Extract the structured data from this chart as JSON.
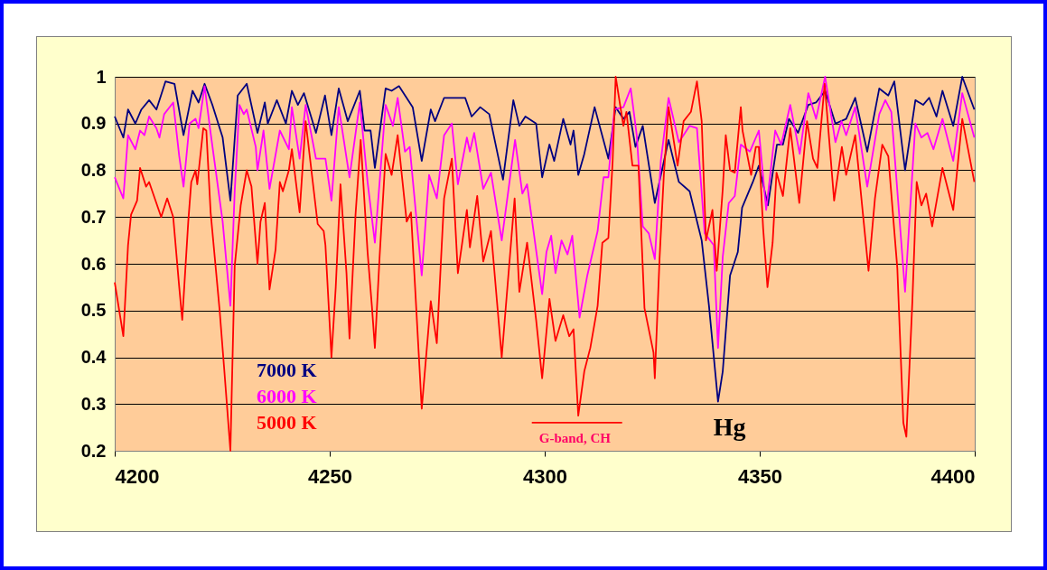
{
  "chart_data": {
    "type": "line",
    "xlim": [
      4200,
      4400
    ],
    "xticks": [
      4200,
      4250,
      4300,
      4350,
      4400
    ],
    "ylim": [
      0.2,
      1
    ],
    "yticks": [
      0.2,
      0.3,
      0.4,
      0.5,
      0.6,
      0.7,
      0.8,
      0.9,
      1
    ],
    "grid": "y",
    "series": [
      {
        "name": "7000 K",
        "color": "#000080",
        "x": [
          4200,
          4202,
          4203.1,
          4204.8,
          4206.2,
          4208,
          4209.7,
          4211.8,
          4213.9,
          4216,
          4218.1,
          4219.5,
          4220.9,
          4222.7,
          4225.1,
          4226.9,
          4228.6,
          4230.7,
          4233.2,
          4234.9,
          4235.6,
          4237.7,
          4239.8,
          4241.2,
          4242.6,
          4244,
          4246.8,
          4248.9,
          4250.4,
          4252.1,
          4254.2,
          4257,
          4258.1,
          4259.5,
          4260.5,
          4263,
          4264.4,
          4266.1,
          4269.3,
          4271.4,
          4273.5,
          4274.5,
          4276.6,
          4279.1,
          4281.5,
          4283,
          4285,
          4287.1,
          4290.3,
          4292.7,
          4294.1,
          4295.5,
          4298,
          4299.4,
          4301.1,
          4302.2,
          4304.3,
          4306,
          4306.7,
          4307.8,
          4309.2,
          4311.6,
          4314.8,
          4316.5,
          4318.3,
          4319.7,
          4321.1,
          4322.8,
          4325.6,
          4328.8,
          4331.2,
          4333.7,
          4336.5,
          4338.2,
          4340.3,
          4341.4,
          4343.1,
          4344.9,
          4345.9,
          4348.4,
          4349.8,
          4351.9,
          4354,
          4355.4,
          4356.8,
          4358.9,
          4361.3,
          4363.1,
          4365.2,
          4367.6,
          4370.1,
          4372.2,
          4375,
          4377.8,
          4379.9,
          4381.3,
          4383.8,
          4386.2,
          4388,
          4389.4,
          4391.1,
          4392.5,
          4395,
          4397.1,
          4399.9
        ],
        "values": [
          0.915,
          0.87,
          0.93,
          0.9,
          0.93,
          0.95,
          0.93,
          0.99,
          0.985,
          0.875,
          0.97,
          0.945,
          0.985,
          0.94,
          0.87,
          0.735,
          0.96,
          0.985,
          0.88,
          0.945,
          0.9,
          0.95,
          0.9,
          0.97,
          0.94,
          0.965,
          0.88,
          0.96,
          0.875,
          0.975,
          0.905,
          0.97,
          0.885,
          0.885,
          0.805,
          0.975,
          0.97,
          0.98,
          0.935,
          0.82,
          0.93,
          0.905,
          0.955,
          0.955,
          0.955,
          0.915,
          0.935,
          0.92,
          0.78,
          0.95,
          0.895,
          0.915,
          0.9,
          0.785,
          0.855,
          0.82,
          0.91,
          0.855,
          0.885,
          0.79,
          0.835,
          0.935,
          0.825,
          0.935,
          0.91,
          0.925,
          0.85,
          0.895,
          0.73,
          0.865,
          0.775,
          0.755,
          0.65,
          0.51,
          0.305,
          0.37,
          0.575,
          0.625,
          0.72,
          0.775,
          0.81,
          0.725,
          0.855,
          0.855,
          0.91,
          0.88,
          0.94,
          0.945,
          0.97,
          0.9,
          0.91,
          0.955,
          0.84,
          0.975,
          0.96,
          0.99,
          0.8,
          0.95,
          0.94,
          0.955,
          0.915,
          0.97,
          0.895,
          1.0,
          0.93
        ]
      },
      {
        "name": "6000 K",
        "color": "#ff00ff",
        "x": [
          4200,
          4202,
          4203.1,
          4204.8,
          4205.9,
          4206.9,
          4208,
          4209.7,
          4210.4,
          4211.5,
          4213.6,
          4215,
          4216,
          4217.4,
          4218.8,
          4219.5,
          4220.9,
          4222.3,
          4225.1,
          4226.9,
          4227.9,
          4229,
          4230,
          4230.7,
          4232.8,
          4233.2,
          4234.6,
          4236,
          4238.4,
          4240.5,
          4241.2,
          4243,
          4244.4,
          4246.8,
          4249,
          4250.4,
          4252.1,
          4254.6,
          4257,
          4258.8,
          4260.5,
          4263,
          4264.7,
          4265.8,
          4267.5,
          4268.6,
          4271.4,
          4273.1,
          4274.9,
          4276.6,
          4278.4,
          4279.8,
          4281.9,
          4282.6,
          4283.6,
          4285.7,
          4287.5,
          4290,
          4293.1,
          4294.8,
          4295.9,
          4299.4,
          4300.4,
          4301.5,
          4302.5,
          4303.9,
          4305.3,
          4306.4,
          4308.1,
          4309.9,
          4312.3,
          4313.7,
          4314.8,
          4316.2,
          4318.3,
          4320,
          4321.4,
          4322.8,
          4324.2,
          4325.6,
          4327,
          4328.8,
          4331.2,
          4333.7,
          4335.4,
          4337.2,
          4339.3,
          4340.3,
          4341.4,
          4342.8,
          4344.2,
          4345.6,
          4347.7,
          4349.8,
          4351.5,
          4353.6,
          4355,
          4357.1,
          4359.3,
          4361.3,
          4363.1,
          4365.2,
          4367.6,
          4369,
          4370.1,
          4372.2,
          4375,
          4377.8,
          4379.2,
          4380.6,
          4383.8,
          4386.2,
          4387.6,
          4389,
          4390.4,
          4392.5,
          4395,
          4397.1,
          4399.9
        ],
        "values": [
          0.785,
          0.74,
          0.875,
          0.845,
          0.885,
          0.875,
          0.915,
          0.89,
          0.87,
          0.92,
          0.945,
          0.83,
          0.765,
          0.9,
          0.91,
          0.89,
          0.98,
          0.88,
          0.69,
          0.51,
          0.755,
          0.94,
          0.92,
          0.93,
          0.85,
          0.8,
          0.885,
          0.76,
          0.885,
          0.845,
          0.935,
          0.825,
          0.94,
          0.825,
          0.825,
          0.735,
          0.935,
          0.785,
          0.945,
          0.775,
          0.645,
          0.94,
          0.895,
          0.955,
          0.84,
          0.85,
          0.575,
          0.79,
          0.74,
          0.875,
          0.9,
          0.77,
          0.87,
          0.84,
          0.88,
          0.76,
          0.795,
          0.65,
          0.865,
          0.75,
          0.77,
          0.535,
          0.625,
          0.66,
          0.58,
          0.65,
          0.62,
          0.66,
          0.485,
          0.575,
          0.67,
          0.785,
          0.785,
          0.93,
          0.935,
          0.975,
          0.875,
          0.68,
          0.665,
          0.61,
          0.82,
          0.955,
          0.86,
          0.895,
          0.89,
          0.665,
          0.64,
          0.42,
          0.615,
          0.73,
          0.745,
          0.855,
          0.84,
          0.885,
          0.715,
          0.885,
          0.855,
          0.94,
          0.835,
          0.965,
          0.91,
          1.0,
          0.86,
          0.905,
          0.875,
          0.935,
          0.765,
          0.92,
          0.95,
          0.925,
          0.54,
          0.9,
          0.87,
          0.88,
          0.845,
          0.91,
          0.82,
          0.965,
          0.87
        ]
      },
      {
        "type": "line",
        "color": "#ff0000",
        "x": [
          4297,
          4318
        ],
        "values": [
          0.26,
          0.26
        ]
      },
      {
        "name": "5000 K",
        "color": "#ff0000",
        "x": [
          4200,
          4202,
          4203.1,
          4203.8,
          4205.2,
          4205.9,
          4207.3,
          4208,
          4210.8,
          4212.2,
          4213.6,
          4215,
          4215.7,
          4217.1,
          4217.8,
          4218.8,
          4219.2,
          4220.6,
          4221.3,
          4222.3,
          4224.4,
          4225.5,
          4226.9,
          4227.9,
          4229.3,
          4230.7,
          4231.8,
          4233.2,
          4233.9,
          4234.9,
          4236,
          4237.4,
          4238.4,
          4239.1,
          4240.5,
          4241.2,
          4243,
          4244.4,
          4247.2,
          4248.6,
          4249,
          4250.4,
          4251.4,
          4252.5,
          4253.9,
          4254.6,
          4256,
          4257.2,
          4258.8,
          4259.8,
          4260.5,
          4261.6,
          4263,
          4264.4,
          4265.8,
          4267.9,
          4268.9,
          4271.4,
          4273.5,
          4274.9,
          4276.6,
          4278.4,
          4279.8,
          4281.9,
          4282.6,
          4284.3,
          4285.7,
          4287.5,
          4290,
          4293,
          4294.1,
          4295.9,
          4298,
          4299.4,
          4301.1,
          4302.5,
          4304.3,
          4305.7,
          4306.7,
          4307.8,
          4309.2,
          4310.6,
          4312.3,
          4313.4,
          4314.8,
          4315.8,
          4316.5,
          4318.3,
          4319,
          4320.4,
          4321.8,
          4323.2,
          4325.3,
          4325.6,
          4326.7,
          4327.7,
          4328.8,
          4330.9,
          4332.3,
          4334,
          4335.4,
          4336.5,
          4337.5,
          4339,
          4340,
          4341.4,
          4342.1,
          4343.1,
          4344.2,
          4345.6,
          4346,
          4348,
          4349.1,
          4349.8,
          4350.8,
          4351.8,
          4353,
          4353.9,
          4355.4,
          4357.1,
          4359.2,
          4361,
          4362.4,
          4363.4,
          4365.1,
          4367.3,
          4369.1,
          4370.1,
          4372.2,
          4375.3,
          4376.8,
          4378.5,
          4379.9,
          4382,
          4383.4,
          4384.1,
          4385.5,
          4386.5,
          4387.6,
          4388.7,
          4390.1,
          4392.5,
          4395,
          4397.1,
          4399.9
        ],
        "values": [
          0.56,
          0.445,
          0.64,
          0.705,
          0.735,
          0.805,
          0.765,
          0.775,
          0.7,
          0.74,
          0.7,
          0.55,
          0.48,
          0.69,
          0.775,
          0.8,
          0.77,
          0.89,
          0.885,
          0.71,
          0.5,
          0.37,
          0.2,
          0.595,
          0.725,
          0.8,
          0.765,
          0.6,
          0.69,
          0.73,
          0.545,
          0.63,
          0.775,
          0.755,
          0.8,
          0.845,
          0.71,
          0.905,
          0.685,
          0.67,
          0.64,
          0.4,
          0.55,
          0.77,
          0.58,
          0.44,
          0.705,
          0.865,
          0.625,
          0.51,
          0.42,
          0.615,
          0.835,
          0.79,
          0.875,
          0.69,
          0.71,
          0.29,
          0.52,
          0.43,
          0.74,
          0.825,
          0.58,
          0.715,
          0.635,
          0.745,
          0.605,
          0.67,
          0.4,
          0.74,
          0.54,
          0.645,
          0.48,
          0.355,
          0.525,
          0.435,
          0.49,
          0.445,
          0.46,
          0.275,
          0.37,
          0.42,
          0.51,
          0.645,
          0.655,
          0.82,
          1.0,
          0.895,
          0.925,
          0.81,
          0.81,
          0.505,
          0.41,
          0.355,
          0.61,
          0.79,
          0.935,
          0.81,
          0.905,
          0.925,
          0.99,
          0.905,
          0.65,
          0.715,
          0.585,
          0.76,
          0.875,
          0.8,
          0.795,
          0.935,
          0.885,
          0.79,
          0.85,
          0.85,
          0.675,
          0.55,
          0.645,
          0.795,
          0.745,
          0.89,
          0.73,
          0.905,
          0.825,
          0.805,
          0.985,
          0.735,
          0.85,
          0.79,
          0.875,
          0.585,
          0.74,
          0.855,
          0.83,
          0.59,
          0.26,
          0.23,
          0.52,
          0.775,
          0.725,
          0.75,
          0.68,
          0.805,
          0.715,
          0.91,
          0.775
        ]
      }
    ],
    "annotations": [
      "G-band, CH",
      "Hg"
    ]
  }
}
